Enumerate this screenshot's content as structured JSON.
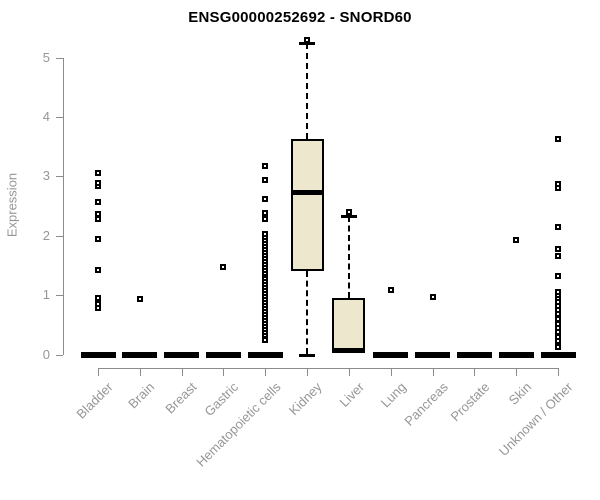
{
  "page": {
    "background": "#ffffff"
  },
  "header": {
    "title": "ENSG00000252692 - SNORD60"
  },
  "colors": {
    "box_fill": "#ede8cd",
    "box_stroke": "#000000",
    "median": "#000000",
    "outlier": "#000000",
    "axis": "#8c8c8c",
    "tick_label": "#969696",
    "title": "#000000",
    "background": "#ffffff"
  },
  "chart_data": {
    "type": "boxplot",
    "title": "ENSG00000252692 - SNORD60",
    "xlabel": "",
    "ylabel": "Expression",
    "ylim": [
      0,
      5.4
    ],
    "ytick_labels": [
      "0",
      "1",
      "2",
      "3",
      "4",
      "5"
    ],
    "grid": false,
    "legend": "none",
    "categories": [
      "Bladder",
      "Brain",
      "Breast",
      "Gastric",
      "Hematopoietic cells",
      "Kidney",
      "Liver",
      "Lung",
      "Pancreas",
      "Prostate",
      "Skin",
      "Unknown / Other"
    ],
    "series": [
      {
        "name": "Bladder",
        "low": 0,
        "q1": 0,
        "median": 0,
        "q3": 0,
        "high": 0,
        "outliers": [
          0.78,
          0.85,
          0.95,
          1.42,
          1.94,
          2.28,
          2.36,
          2.56,
          2.83,
          2.89,
          3.06
        ]
      },
      {
        "name": "Brain",
        "low": 0,
        "q1": 0,
        "median": 0,
        "q3": 0,
        "high": 0,
        "outliers": [
          0.93
        ]
      },
      {
        "name": "Breast",
        "low": 0,
        "q1": 0,
        "median": 0,
        "q3": 0,
        "high": 0,
        "outliers": []
      },
      {
        "name": "Gastric",
        "low": 0,
        "q1": 0,
        "median": 0,
        "q3": 0,
        "high": 0,
        "outliers": [
          1.47
        ]
      },
      {
        "name": "Hematopoietic cells",
        "low": 0,
        "q1": 0,
        "median": 0,
        "q3": 0,
        "high": 0,
        "outliers": [
          0.25,
          0.33,
          0.38,
          0.43,
          0.48,
          0.53,
          0.58,
          0.63,
          0.68,
          0.73,
          0.78,
          0.83,
          0.88,
          0.93,
          0.98,
          1.03,
          1.08,
          1.13,
          1.18,
          1.23,
          1.28,
          1.33,
          1.38,
          1.43,
          1.48,
          1.53,
          1.58,
          1.63,
          1.68,
          1.73,
          1.78,
          1.83,
          1.88,
          1.93,
          1.98,
          2.03,
          2.28,
          2.39,
          2.61,
          2.94,
          3.17
        ]
      },
      {
        "name": "Kidney",
        "low": 0,
        "q1": 1.4,
        "median": 2.72,
        "q3": 3.62,
        "high": 5.25,
        "outliers": [
          5.3
        ]
      },
      {
        "name": "Liver",
        "low": 0,
        "q1": 0.02,
        "median": 0.06,
        "q3": 0.95,
        "high": 2.33,
        "outliers": [
          2.4
        ]
      },
      {
        "name": "Lung",
        "low": 0,
        "q1": 0,
        "median": 0,
        "q3": 0,
        "high": 0,
        "outliers": [
          1.08
        ]
      },
      {
        "name": "Pancreas",
        "low": 0,
        "q1": 0,
        "median": 0,
        "q3": 0,
        "high": 0,
        "outliers": [
          0.97
        ]
      },
      {
        "name": "Prostate",
        "low": 0,
        "q1": 0,
        "median": 0,
        "q3": 0,
        "high": 0,
        "outliers": []
      },
      {
        "name": "Skin",
        "low": 0,
        "q1": 0,
        "median": 0,
        "q3": 0,
        "high": 0,
        "outliers": [
          1.92
        ]
      },
      {
        "name": "Unknown / Other",
        "low": 0,
        "q1": 0,
        "median": 0,
        "q3": 0,
        "high": 0,
        "outliers": [
          0.12,
          0.22,
          0.3,
          0.38,
          0.45,
          0.52,
          0.6,
          0.68,
          0.75,
          0.82,
          0.88,
          0.95,
          1.0,
          1.05,
          1.32,
          1.65,
          1.78,
          2.15,
          2.8,
          2.87,
          3.63
        ]
      }
    ]
  }
}
